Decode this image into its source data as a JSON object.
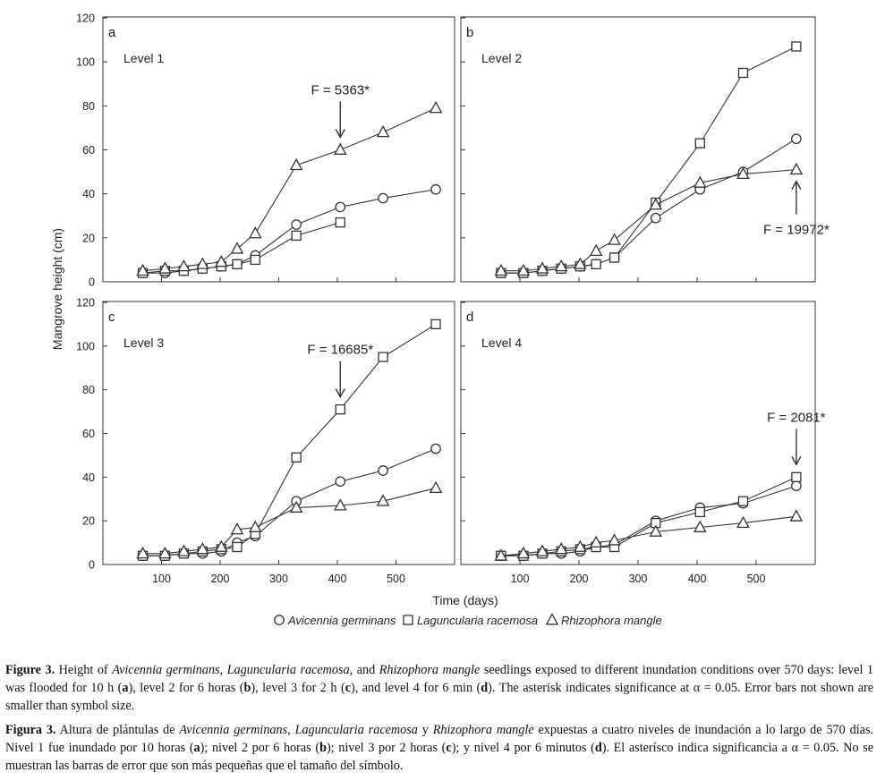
{
  "figure": {
    "y_axis_label": "Mangrove height (cm)",
    "x_axis_label": "Time (days)",
    "legend": [
      {
        "key": "avicennia",
        "label": "Avicennia germinans",
        "marker": "circle"
      },
      {
        "key": "laguncularia",
        "label": "Laguncularia racemosa",
        "marker": "square"
      },
      {
        "key": "rhizophora",
        "label": "Rhizophora mangle",
        "marker": "triangle"
      }
    ]
  },
  "chart_data": [
    {
      "type": "line",
      "panel_letter": "a",
      "level_label": "Level 1",
      "annotation": {
        "text": "F = 5363*",
        "at_x": 405
      },
      "x": [
        68,
        106,
        138,
        170,
        202,
        229,
        260,
        330,
        405,
        478,
        568
      ],
      "ylim": [
        0,
        120
      ],
      "yticks": [
        0,
        20,
        40,
        60,
        80,
        100,
        120
      ],
      "xlim": [
        0,
        600
      ],
      "xticks": [
        100,
        200,
        300,
        400,
        500
      ],
      "series": [
        {
          "name": "Avicennia germinans",
          "values": [
            4,
            4,
            5,
            6,
            7,
            8,
            12,
            26,
            34,
            38,
            42
          ]
        },
        {
          "name": "Laguncularia racemosa",
          "values": [
            4,
            5,
            5,
            6,
            7,
            8,
            10,
            21,
            27,
            null,
            null
          ]
        },
        {
          "name": "Rhizophora mangle",
          "values": [
            5,
            6,
            7,
            8,
            9,
            15,
            22,
            53,
            60,
            68,
            79
          ]
        }
      ]
    },
    {
      "type": "line",
      "panel_letter": "b",
      "level_label": "Level 2",
      "annotation": {
        "text": "F = 19972*",
        "at_x": 568
      },
      "x": [
        68,
        106,
        138,
        170,
        202,
        229,
        260,
        330,
        405,
        478,
        568
      ],
      "ylim": [
        0,
        120
      ],
      "yticks": [
        0,
        20,
        40,
        60,
        80,
        100,
        120
      ],
      "xlim": [
        0,
        600
      ],
      "xticks": [
        100,
        200,
        300,
        400,
        500
      ],
      "series": [
        {
          "name": "Avicennia germinans",
          "values": [
            4,
            4,
            5,
            6,
            7,
            8,
            11,
            29,
            42,
            50,
            65
          ]
        },
        {
          "name": "Laguncularia racemosa",
          "values": [
            4,
            4,
            5,
            6,
            7,
            8,
            11,
            36,
            63,
            95,
            107
          ]
        },
        {
          "name": "Rhizophora mangle",
          "values": [
            5,
            5,
            6,
            7,
            8,
            14,
            19,
            35,
            45,
            49,
            51
          ]
        }
      ]
    },
    {
      "type": "line",
      "panel_letter": "c",
      "level_label": "Level 3",
      "annotation": {
        "text": "F = 16685*",
        "at_x": 405
      },
      "x": [
        68,
        106,
        138,
        170,
        202,
        229,
        260,
        330,
        405,
        478,
        568
      ],
      "ylim": [
        0,
        120
      ],
      "yticks": [
        0,
        20,
        40,
        60,
        80,
        100,
        120
      ],
      "xlim": [
        0,
        600
      ],
      "xticks": [
        100,
        200,
        300,
        400,
        500
      ],
      "series": [
        {
          "name": "Avicennia germinans",
          "values": [
            4,
            4,
            5,
            5,
            6,
            10,
            13,
            29,
            38,
            43,
            53
          ]
        },
        {
          "name": "Laguncularia racemosa",
          "values": [
            4,
            4,
            5,
            6,
            7,
            8,
            14,
            49,
            71,
            95,
            110
          ]
        },
        {
          "name": "Rhizophora mangle",
          "values": [
            5,
            5,
            6,
            7,
            8,
            16,
            17,
            26,
            27,
            29,
            35
          ]
        }
      ]
    },
    {
      "type": "line",
      "panel_letter": "d",
      "level_label": "Level 4",
      "annotation": {
        "text": "F = 2081*",
        "at_x": 568
      },
      "x": [
        68,
        106,
        138,
        170,
        202,
        229,
        260,
        330,
        405,
        478,
        568
      ],
      "ylim": [
        0,
        120
      ],
      "yticks": [
        0,
        20,
        40,
        60,
        80,
        100,
        120
      ],
      "xlim": [
        0,
        600
      ],
      "xticks": [
        100,
        200,
        300,
        400,
        500
      ],
      "series": [
        {
          "name": "Avicennia germinans",
          "values": [
            4,
            4,
            5,
            5,
            6,
            8,
            9,
            20,
            26,
            28,
            36
          ]
        },
        {
          "name": "Laguncularia racemosa",
          "values": [
            4,
            4,
            5,
            6,
            7,
            8,
            8,
            19,
            24,
            29,
            40
          ]
        },
        {
          "name": "Rhizophora mangle",
          "values": [
            4,
            5,
            6,
            7,
            8,
            10,
            11,
            15,
            17,
            19,
            22
          ]
        }
      ]
    }
  ],
  "caption_en": {
    "label": "Figure 3.",
    "t1": " Height of ",
    "sp1": "Avicennia germinans",
    "t2": ", ",
    "sp2": "Laguncularia racemosa",
    "t3": ", and ",
    "sp3": "Rhizophora mangle",
    "t4": " seedlings exposed to different inundation conditions over 570 days: level 1 was flooded for 10 h (",
    "a": "a",
    "t5": "), level 2 for 6 horas (",
    "b": "b",
    "t6": "), level 3 for 2 h (",
    "c": "c",
    "t7": "), and level 4 for 6 min (",
    "d": "d",
    "t8": "). The asterisk indicates significance at α = 0.05. Error bars not shown are smaller than symbol size."
  },
  "caption_es": {
    "label": "Figura 3.",
    "t1": " Altura de plántulas de ",
    "sp1": "Avicennia germinans",
    "t2": ", ",
    "sp2": "Laguncularia racemosa",
    "t3": " y ",
    "sp3": "Rhizophora mangle",
    "t4": " expuestas a cuatro niveles de inundación a lo largo de 570 días. Nivel 1 fue inundado por 10 horas (",
    "a": "a",
    "t5": "); nivel 2 por 6 horas (",
    "b": "b",
    "t6": "); nivel 3 por 2 horas (",
    "c": "c",
    "t7": "); y nivel 4 por 6 minutos (",
    "d": "d",
    "t8": "). El asterísco  indica significancia a α = 0.05. No se muestran las barras de error que son más pequeñas que el tamaño del símbolo."
  }
}
